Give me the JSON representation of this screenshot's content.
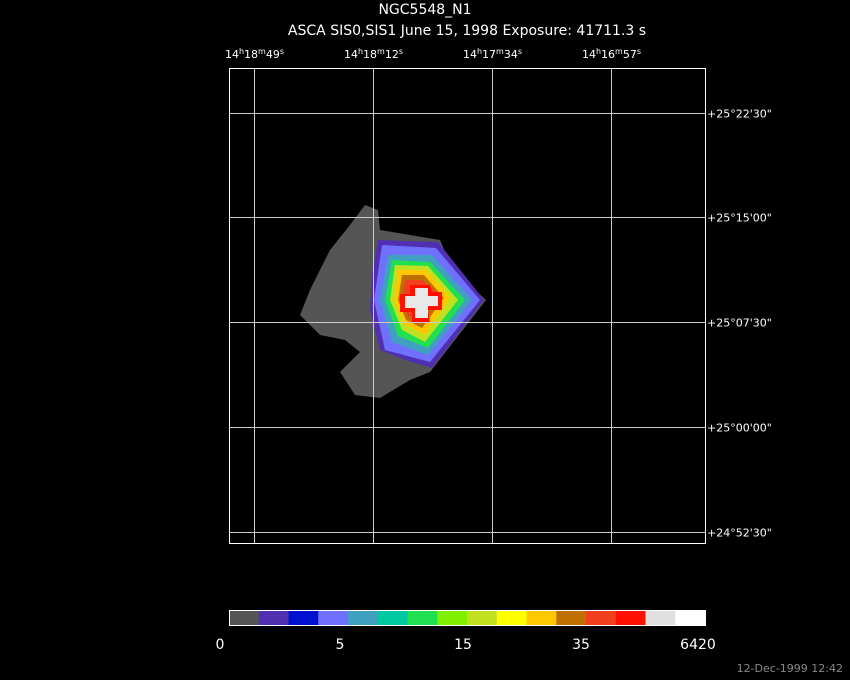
{
  "title": "NGC5548_N1",
  "subtitle": "ASCA SIS0,SIS1 June 15, 1998 Exposure: 41711.3 s",
  "ra_labels": [
    "14h18m49s",
    "14h18m12s",
    "14h17m34s",
    "14h16m57s"
  ],
  "dec_labels": [
    "+25°22'30\"",
    "+25°15'00\"",
    "+25°07'30\"",
    "+25°00'00\"",
    "+24°52'30\""
  ],
  "colorbar": {
    "colors": [
      "#555555",
      "#5030b0",
      "#0010d0",
      "#7070ff",
      "#40a0c0",
      "#00c8a0",
      "#20e050",
      "#80f000",
      "#c0e020",
      "#ffff00",
      "#ffc800",
      "#c07000",
      "#f04020",
      "#ff1000",
      "#e0e0e0",
      "#ffffff"
    ],
    "labels": [
      "0",
      "5",
      "15",
      "35",
      "6420"
    ]
  },
  "timestamp": "12-Dec-1999 12:42"
}
